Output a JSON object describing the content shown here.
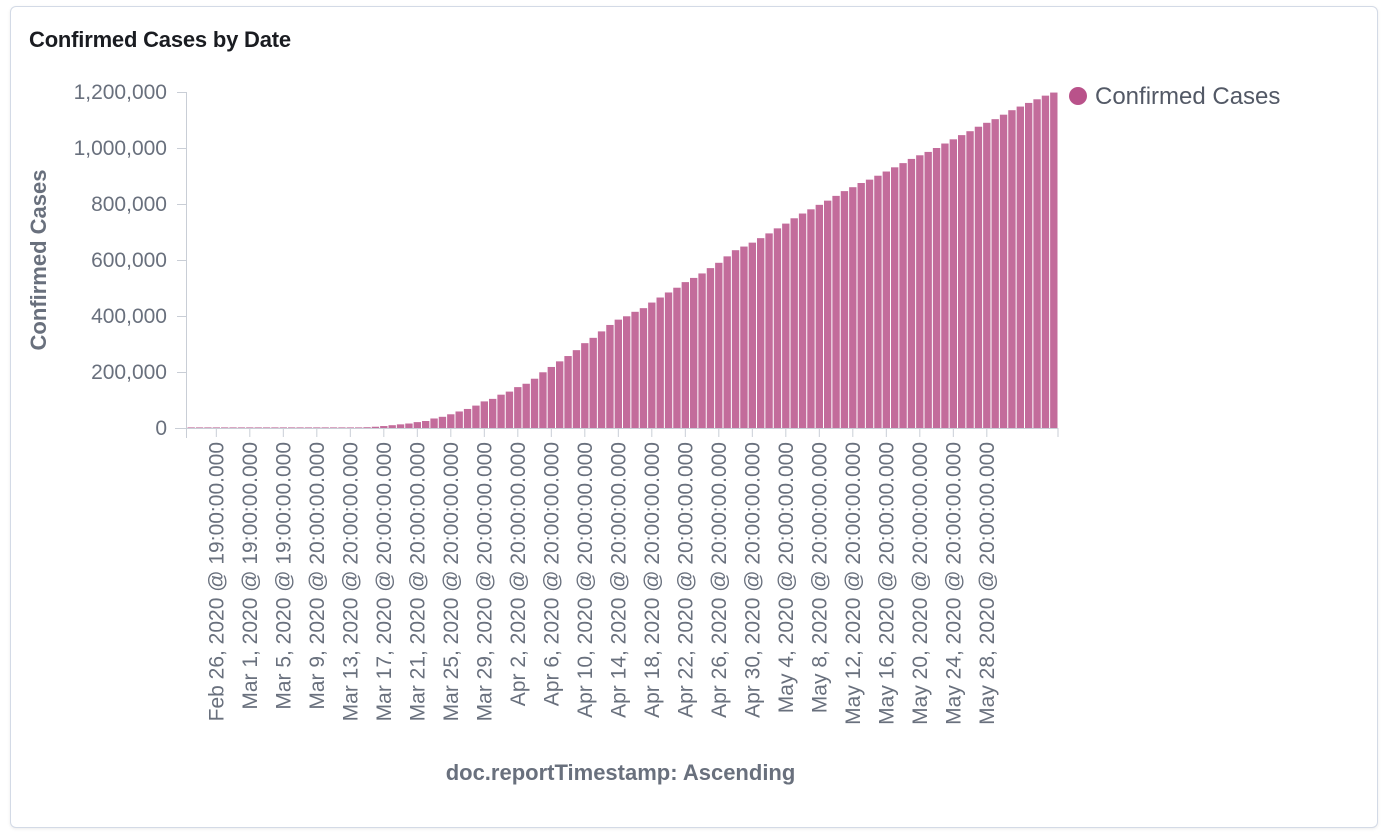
{
  "panel": {
    "title": "Confirmed Cases by Date"
  },
  "colors": {
    "bar": "#b9528a",
    "axis": "#c9ced6",
    "text": "#69707d"
  },
  "chart_data": {
    "type": "bar",
    "title": "Confirmed Cases by Date",
    "xlabel": "doc.reportTimestamp: Ascending",
    "ylabel": "Confirmed Cases",
    "ylim": [
      0,
      1200000
    ],
    "yticks": [
      0,
      200000,
      400000,
      600000,
      800000,
      1000000,
      1200000
    ],
    "ytick_labels": [
      "0",
      "200,000",
      "400,000",
      "600,000",
      "800,000",
      "1,000,000",
      "1,200,000"
    ],
    "xtick_labels": [
      "Feb 26, 2020 @ 19:00:00.000",
      "Mar 1, 2020 @ 19:00:00.000",
      "Mar 5, 2020 @ 19:00:00.000",
      "Mar 9, 2020 @ 20:00:00.000",
      "Mar 13, 2020 @ 20:00:00.000",
      "Mar 17, 2020 @ 20:00:00.000",
      "Mar 21, 2020 @ 20:00:00.000",
      "Mar 25, 2020 @ 20:00:00.000",
      "Mar 29, 2020 @ 20:00:00.000",
      "Apr 2, 2020 @ 20:00:00.000",
      "Apr 6, 2020 @ 20:00:00.000",
      "Apr 10, 2020 @ 20:00:00.000",
      "Apr 14, 2020 @ 20:00:00.000",
      "Apr 18, 2020 @ 20:00:00.000",
      "Apr 22, 2020 @ 20:00:00.000",
      "Apr 26, 2020 @ 20:00:00.000",
      "Apr 30, 2020 @ 20:00:00.000",
      "May 4, 2020 @ 20:00:00.000",
      "May 8, 2020 @ 20:00:00.000",
      "May 12, 2020 @ 20:00:00.000",
      "May 16, 2020 @ 20:00:00.000",
      "May 20, 2020 @ 20:00:00.000",
      "May 24, 2020 @ 20:00:00.000",
      "May 28, 2020 @ 20:00:00.000"
    ],
    "legend": {
      "position": "top-right",
      "entries": [
        "Confirmed Cases"
      ]
    },
    "series": [
      {
        "name": "Confirmed Cases",
        "values": [
          60,
          60,
          60,
          60,
          60,
          60,
          60,
          60,
          60,
          65,
          70,
          80,
          100,
          120,
          180,
          250,
          350,
          500,
          700,
          1000,
          1600,
          2800,
          4500,
          7000,
          10000,
          13000,
          16000,
          21000,
          25000,
          34000,
          40000,
          49000,
          59000,
          68000,
          80000,
          95000,
          104000,
          119000,
          130000,
          146000,
          158000,
          176000,
          199000,
          218000,
          238000,
          257000,
          278000,
          303000,
          322000,
          345000,
          368000,
          387000,
          399000,
          415000,
          428000,
          448000,
          466000,
          484000,
          501000,
          521000,
          536000,
          552000,
          571000,
          590000,
          613000,
          635000,
          648000,
          662000,
          678000,
          695000,
          713000,
          730000,
          749000,
          766000,
          781000,
          797000,
          812000,
          829000,
          846000,
          860000,
          875000,
          887000,
          901000,
          916000,
          931000,
          946000,
          961000,
          974000,
          986000,
          1000000,
          1016000,
          1031000,
          1046000,
          1060000,
          1076000,
          1090000,
          1103000,
          1119000,
          1135000,
          1148000,
          1161000,
          1174000,
          1187000,
          1198000
        ]
      }
    ]
  }
}
